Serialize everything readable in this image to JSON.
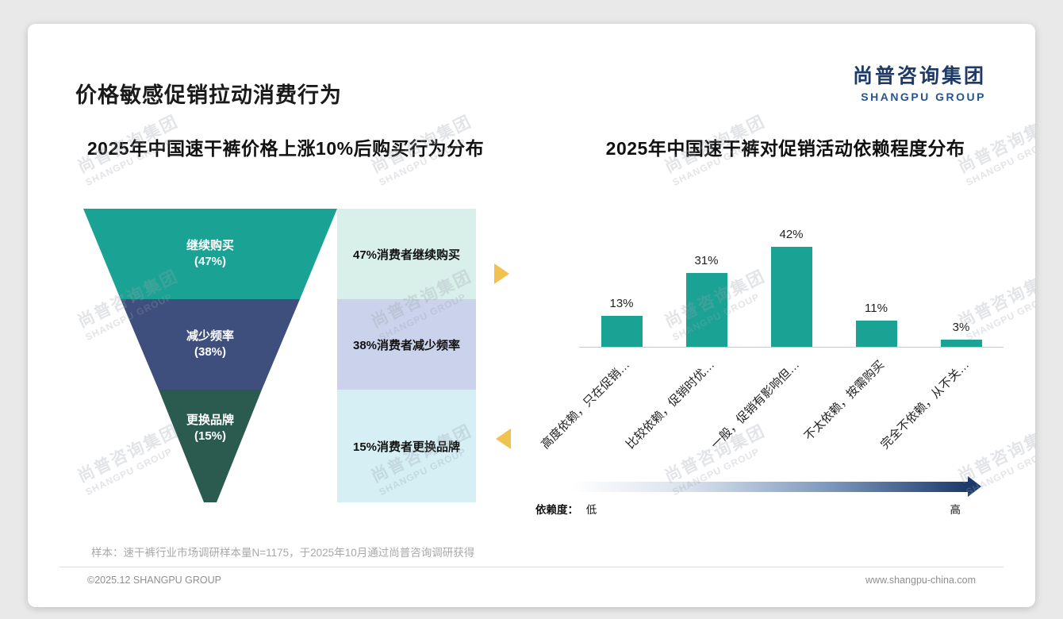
{
  "page": {
    "title": "价格敏感促销拉动消费行为",
    "logo": {
      "cn": "尚普咨询集团",
      "en": "SHANGPU GROUP"
    },
    "watermark": {
      "cn": "尚普咨询集团",
      "en": "SHANGPU GROUP"
    },
    "footer": {
      "sample_note": "样本：速干裤行业市场调研样本量N=1175，于2025年10月通过尚普咨询调研获得",
      "copyright": "©2025.12 SHANGPU GROUP",
      "website": "www.shangpu-china.com"
    }
  },
  "chart_data": [
    {
      "type": "funnel",
      "title": "2025年中国速干裤价格上涨10%后购买行为分布",
      "unit": "%",
      "segments": [
        {
          "label": "继续购买",
          "pct_text": "(47%)",
          "value": 47,
          "annotation": "47%消费者继续购买",
          "color": "#1AA394",
          "annotation_bg": "#D9EFEA"
        },
        {
          "label": "减少频率",
          "pct_text": "(38%)",
          "value": 38,
          "annotation": "38%消费者减少频率",
          "color": "#3E4E7D",
          "annotation_bg": "#CAD3EB"
        },
        {
          "label": "更换品牌",
          "pct_text": "(15%)",
          "value": 15,
          "annotation": "15%消费者更换品牌",
          "color": "#2B5B4F",
          "annotation_bg": "#D5EFF5"
        }
      ],
      "arrow_color": "#F0C24E"
    },
    {
      "type": "bar",
      "title": "2025年中国速干裤对促销活动依赖程度分布",
      "categories": [
        "高度依赖，只在促销…",
        "比较依赖，促销时优…",
        "一般，促销有影响但…",
        "不太依赖，按需购买",
        "完全不依赖，从不关…"
      ],
      "values": [
        13,
        31,
        42,
        11,
        3
      ],
      "unit": "%",
      "ylim": [
        0,
        45
      ],
      "grid": false,
      "bar_color": "#1AA394",
      "dependency_scale": {
        "label": "依赖度：",
        "low": "低",
        "high": "高",
        "gradient_end_color": "#1B3A6B"
      }
    }
  ]
}
